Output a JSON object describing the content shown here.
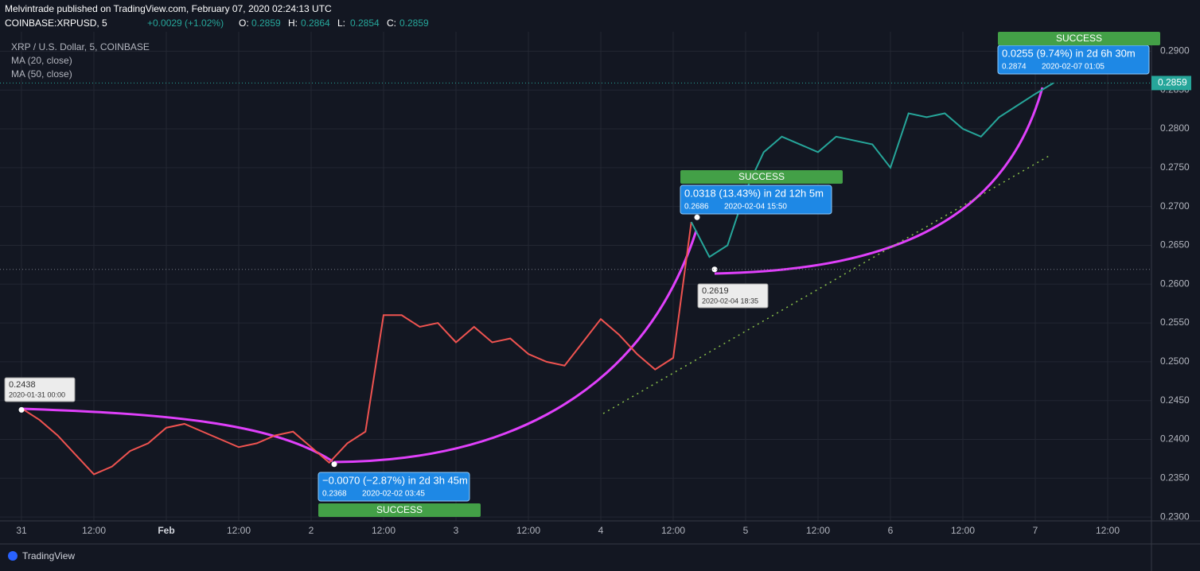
{
  "header": {
    "byline": "Melvintrade published on TradingView.com, February 07, 2020 02:24:13 UTC",
    "symbol": "COINBASE:XRPUSD, 5",
    "change": "+0.0029 (+1.02%)",
    "ohlc": [
      {
        "key": "O:",
        "value": "0.2859"
      },
      {
        "key": "H:",
        "value": "0.2864"
      },
      {
        "key": "L:",
        "value": "0.2854"
      },
      {
        "key": "C:",
        "value": "0.2859"
      }
    ]
  },
  "legend": [
    "XRP / U.S. Dollar, 5, COINBASE",
    "MA (20, close)",
    "MA (50, close)"
  ],
  "footer": "TradingView",
  "chart_data": {
    "type": "line",
    "categories": [
      "31",
      null,
      null,
      null,
      "12:00",
      null,
      null,
      null,
      "Feb",
      null,
      null,
      null,
      "12:00",
      null,
      null,
      null,
      "2",
      null,
      null,
      null,
      "12:00",
      null,
      null,
      null,
      "3",
      null,
      null,
      null,
      "12:00",
      null,
      null,
      null,
      "4",
      null,
      null,
      null,
      "12:00",
      null,
      null,
      null,
      "5",
      null,
      null,
      null,
      "12:00",
      null,
      null,
      null,
      "6",
      null,
      null,
      null,
      "12:00",
      null,
      null,
      null,
      "7",
      null,
      null,
      null,
      "12:00",
      null,
      null
    ],
    "series": [
      {
        "color": "#ef5350",
        "values": [
          0.244,
          0.2425,
          0.2405,
          0.238,
          0.2355,
          0.2365,
          0.2385,
          0.2395,
          0.2415,
          0.242,
          0.241,
          0.24,
          0.239,
          0.2395,
          0.2405,
          0.241,
          0.239,
          0.237,
          0.2395,
          0.241,
          0.256,
          0.256,
          0.2545,
          0.255,
          0.2525,
          0.2545,
          0.2525,
          0.253,
          0.251,
          0.25,
          0.2495,
          0.2525,
          0.2555,
          0.2535,
          0.251,
          0.249,
          0.2505,
          0.268,
          null,
          null,
          null,
          null,
          null,
          null,
          null,
          null,
          null,
          null,
          null,
          null,
          null,
          null,
          null,
          null,
          null,
          null,
          null,
          null,
          null,
          null,
          null,
          null,
          null
        ]
      },
      {
        "color": "#26a69a",
        "values": [
          null,
          null,
          null,
          null,
          null,
          null,
          null,
          null,
          null,
          null,
          null,
          null,
          null,
          null,
          null,
          null,
          null,
          null,
          null,
          null,
          null,
          null,
          null,
          null,
          null,
          null,
          null,
          null,
          null,
          null,
          null,
          null,
          null,
          null,
          null,
          null,
          null,
          0.268,
          0.2635,
          0.265,
          0.272,
          0.277,
          0.279,
          0.278,
          0.277,
          0.279,
          0.2785,
          0.278,
          0.275,
          0.282,
          0.2815,
          0.282,
          0.28,
          0.279,
          0.2815,
          0.283,
          0.2845,
          0.2859,
          null,
          null,
          null,
          null,
          null
        ]
      }
    ],
    "ylim": [
      0.2295,
      0.2925
    ],
    "yticks": [
      {
        "value": 0.23,
        "label": "0.2300"
      },
      {
        "value": 0.235,
        "label": "0.2350"
      },
      {
        "value": 0.24,
        "label": "0.2400"
      },
      {
        "value": 0.245,
        "label": "0.2450"
      },
      {
        "value": 0.25,
        "label": "0.2500"
      },
      {
        "value": 0.255,
        "label": "0.2550"
      },
      {
        "value": 0.26,
        "label": "0.2600"
      },
      {
        "value": 0.265,
        "label": "0.2650"
      },
      {
        "value": 0.27,
        "label": "0.2700"
      },
      {
        "value": 0.275,
        "label": "0.2750"
      },
      {
        "value": 0.28,
        "label": "0.2800"
      },
      {
        "value": 0.285,
        "label": "0.2850"
      },
      {
        "value": 0.29,
        "label": "0.2900"
      }
    ],
    "grid": true,
    "last_price": 0.2859,
    "annotations": [
      {
        "price": 0.2438,
        "date": "2020-01-31 00:00"
      },
      {
        "change": "−0.0070 (−2.87%) in 2d 3h 45m",
        "price": 0.2368,
        "date": "2020-02-02  03:45",
        "status": "SUCCESS"
      },
      {
        "change": "0.0318 (13.43%) in 2d 12h 5m",
        "price": 0.2686,
        "date": "2020-02-04  15:50",
        "status": "SUCCESS"
      },
      {
        "price": 0.2619,
        "date": "2020-02-04 18:35"
      },
      {
        "change": "0.0255 (9.74%) in 2d 6h 30m",
        "price": 0.2874,
        "date": "2020-02-07  01:05",
        "status": "SUCCESS"
      }
    ]
  }
}
